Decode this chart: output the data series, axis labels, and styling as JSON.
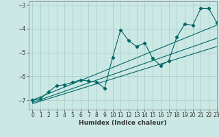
{
  "title": "",
  "xlabel": "Humidex (Indice chaleur)",
  "xlim": [
    -0.5,
    23
  ],
  "ylim": [
    -7.4,
    -2.85
  ],
  "yticks": [
    -7,
    -6,
    -5,
    -4,
    -3
  ],
  "xticks": [
    0,
    1,
    2,
    3,
    4,
    5,
    6,
    7,
    8,
    9,
    10,
    11,
    12,
    13,
    14,
    15,
    16,
    17,
    18,
    19,
    20,
    21,
    22,
    23
  ],
  "bg_color": "#cce8e4",
  "grid_color": "#aacfcc",
  "line_color": "#006666",
  "curve_x": [
    0,
    1,
    2,
    3,
    4,
    5,
    6,
    7,
    8,
    9,
    10,
    11,
    12,
    13,
    14,
    15,
    16,
    17,
    18,
    19,
    20,
    21,
    22,
    23
  ],
  "curve_y": [
    -7.0,
    -6.95,
    -6.65,
    -6.4,
    -6.35,
    -6.25,
    -6.15,
    -6.2,
    -6.25,
    -6.5,
    -5.2,
    -4.05,
    -4.5,
    -4.75,
    -4.6,
    -5.25,
    -5.55,
    -5.35,
    -4.35,
    -3.8,
    -3.85,
    -3.15,
    -3.15,
    -3.75
  ],
  "trend1_x": [
    0,
    23
  ],
  "trend1_y": [
    -7.0,
    -3.85
  ],
  "trend2_x": [
    0,
    23
  ],
  "trend2_y": [
    -7.1,
    -4.4
  ],
  "trend3_x": [
    0,
    23
  ],
  "trend3_y": [
    -7.15,
    -4.75
  ]
}
